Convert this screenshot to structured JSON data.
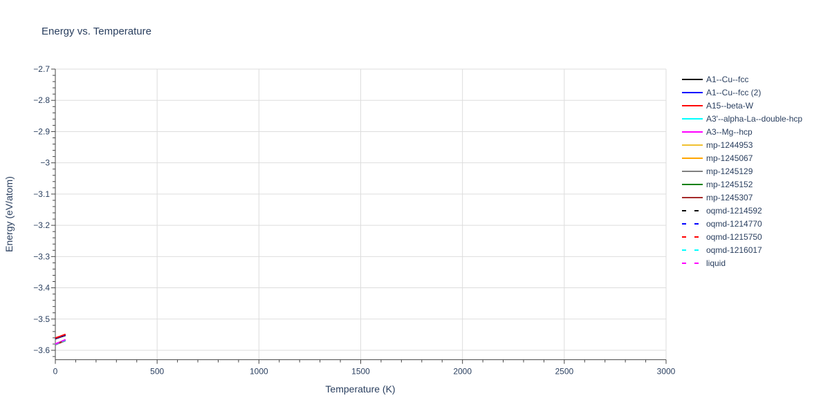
{
  "chart_data": {
    "type": "line",
    "title": "Energy vs. Temperature",
    "xlabel": "Temperature (K)",
    "ylabel": "Energy (eV/atom)",
    "xlim": [
      0,
      3000
    ],
    "ylim": [
      -3.63,
      -2.7
    ],
    "xticks": [
      0,
      500,
      1000,
      1500,
      2000,
      2500,
      3000
    ],
    "yticks": [
      -2.7,
      -2.8,
      -2.9,
      -3,
      -3.1,
      -3.2,
      -3.3,
      -3.4,
      -3.5,
      -3.6
    ],
    "ytick_labels": [
      "−2.7",
      "−2.8",
      "−2.9",
      "−3",
      "−3.1",
      "−3.2",
      "−3.3",
      "−3.4",
      "−3.5",
      "−3.6"
    ],
    "grid": true,
    "legend_position": "right",
    "series": [
      {
        "name": "A1--Cu--fcc",
        "color": "#000000",
        "dash": false,
        "x": [
          0,
          50
        ],
        "y": [
          -3.563,
          -3.552
        ]
      },
      {
        "name": "A1--Cu--fcc (2)",
        "color": "#0000ff",
        "dash": false,
        "x": [
          0,
          50
        ],
        "y": [
          -3.562,
          -3.551
        ]
      },
      {
        "name": "A15--beta-W",
        "color": "#ff0000",
        "dash": false,
        "x": [
          0,
          50
        ],
        "y": [
          -3.561,
          -3.549
        ]
      },
      {
        "name": "A3'--alpha-La--double-hcp",
        "color": "#00ffff",
        "dash": false,
        "x": [
          0,
          50
        ],
        "y": [
          -3.581,
          -3.568
        ]
      },
      {
        "name": "A3--Mg--hcp",
        "color": "#ff00ff",
        "dash": false,
        "x": [
          0,
          50
        ],
        "y": [
          -3.58,
          -3.566
        ]
      },
      {
        "name": "mp-1244953",
        "color": "#f0c030",
        "dash": false,
        "x": [
          0,
          50
        ],
        "y": [
          -3.581,
          -3.568
        ]
      },
      {
        "name": "mp-1245067",
        "color": "#ffa500",
        "dash": false,
        "x": [
          0,
          50
        ],
        "y": [
          -3.581,
          -3.568
        ]
      },
      {
        "name": "mp-1245129",
        "color": "#808080",
        "dash": false,
        "x": [
          0,
          50
        ],
        "y": [
          -3.581,
          -3.568
        ]
      },
      {
        "name": "mp-1245152",
        "color": "#008000",
        "dash": false,
        "x": [
          0,
          50
        ],
        "y": [
          -3.582,
          -3.569
        ]
      },
      {
        "name": "mp-1245307",
        "color": "#a52a2a",
        "dash": false,
        "x": [
          0,
          50
        ],
        "y": [
          -3.582,
          -3.569
        ]
      },
      {
        "name": "oqmd-1214592",
        "color": "#000000",
        "dash": true,
        "x": [
          0,
          50
        ],
        "y": [
          -3.563,
          -3.552
        ]
      },
      {
        "name": "oqmd-1214770",
        "color": "#0000ff",
        "dash": true,
        "x": [
          0,
          50
        ],
        "y": [
          -3.562,
          -3.551
        ]
      },
      {
        "name": "oqmd-1215750",
        "color": "#ff0000",
        "dash": true,
        "x": [
          0,
          50
        ],
        "y": [
          -3.561,
          -3.549
        ]
      },
      {
        "name": "oqmd-1216017",
        "color": "#00ffff",
        "dash": true,
        "x": [
          0,
          50
        ],
        "y": [
          -3.581,
          -3.568
        ]
      },
      {
        "name": "liquid",
        "color": "#ff00ff",
        "dash": true,
        "x": [
          0,
          50
        ],
        "y": [
          -3.58,
          -3.566
        ]
      }
    ]
  }
}
